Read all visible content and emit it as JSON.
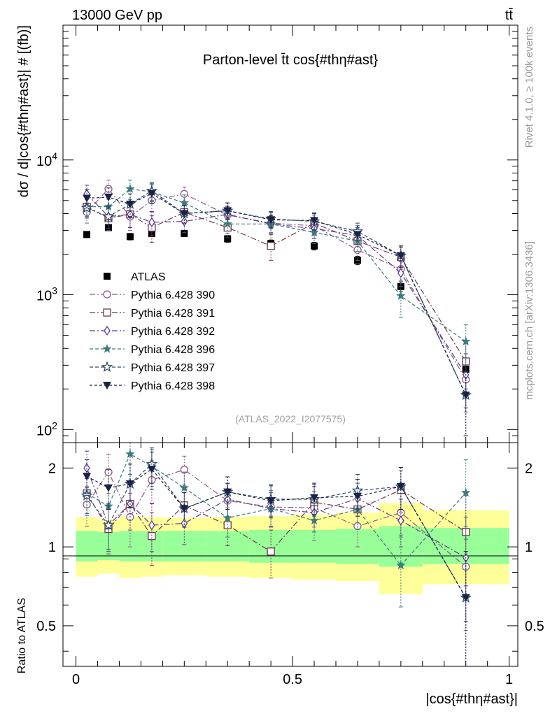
{
  "header": {
    "energy_label": "13000 GeV pp",
    "process_label": "tt̄"
  },
  "side_labels": {
    "rivet": "Rivet 4.1.0, ≥ 100k events",
    "mcplots": "mcplots.cern.ch [arXiv:1306.3436]"
  },
  "colors": {
    "atlas": "#000000",
    "p390": "#8a5a88",
    "p391": "#6e3a4a",
    "p392": "#5a3a8c",
    "p396": "#3e7a7e",
    "p397": "#2e4a68",
    "p398": "#1a2248",
    "band_outer": "#ffff99",
    "band_inner": "#99ff99"
  },
  "chart_data": [
    {
      "type": "scatter",
      "scale": "log",
      "title": "Parton-level t̄t cos{#thη#ast}",
      "ylabel": "dσ / d|cos{#thη#ast}| # [(fb)]",
      "xlabel": "",
      "xlim": [
        -0.03,
        1.02
      ],
      "ylim": [
        80,
        100000
      ],
      "yticks": [
        "10^2",
        "10^3",
        "10^4"
      ],
      "analysis": "(ATLAS_2022_I2077575)",
      "x": [
        0.025,
        0.075,
        0.125,
        0.175,
        0.25,
        0.35,
        0.45,
        0.55,
        0.65,
        0.75,
        0.9
      ],
      "series": [
        {
          "name": "ATLAS",
          "key": "atlas",
          "marker": "square-filled",
          "dash": "none",
          "values": [
            2800,
            3150,
            2700,
            2850,
            2850,
            2600,
            2400,
            2300,
            1800,
            1150,
            280
          ],
          "err": [
            150,
            150,
            150,
            150,
            150,
            150,
            150,
            150,
            130,
            100,
            40
          ]
        },
        {
          "name": "Pythia 6.428 390",
          "key": "p390",
          "marker": "circle-open",
          "dash": "8,3,2,3",
          "values": [
            4100,
            6100,
            3800,
            5000,
            5600,
            3900,
            3400,
            3250,
            2150,
            1550,
            235
          ],
          "err": [
            700,
            1000,
            800,
            900,
            700,
            600,
            500,
            500,
            350,
            300,
            100
          ]
        },
        {
          "name": "Pythia 6.428 391",
          "key": "p391",
          "marker": "square-open",
          "dash": "8,3,2,3",
          "values": [
            4500,
            3700,
            3950,
            3150,
            4100,
            3150,
            2300,
            3400,
            2500,
            1900,
            320
          ],
          "err": [
            700,
            700,
            800,
            700,
            600,
            500,
            500,
            500,
            400,
            350,
            120
          ]
        },
        {
          "name": "Pythia 6.428 392",
          "key": "p392",
          "marker": "diamond-open",
          "dash": "8,3,2,3",
          "values": [
            5600,
            3800,
            3950,
            3450,
            3500,
            3950,
            3350,
            3100,
            2750,
            1450,
            255
          ],
          "err": [
            900,
            800,
            800,
            700,
            600,
            600,
            500,
            500,
            400,
            300,
            110
          ]
        },
        {
          "name": "Pythia 6.428 396",
          "key": "p396",
          "marker": "star-filled",
          "dash": "5,3",
          "values": [
            4500,
            4500,
            6100,
            5800,
            4800,
            3350,
            3350,
            2900,
            2500,
            980,
            450
          ],
          "err": [
            700,
            800,
            1000,
            900,
            700,
            500,
            500,
            500,
            400,
            300,
            150
          ]
        },
        {
          "name": "Pythia 6.428 397",
          "key": "p397",
          "marker": "star-open",
          "dash": "5,3",
          "values": [
            4400,
            3800,
            4700,
            5900,
            4000,
            4200,
            3650,
            3500,
            2950,
            1950,
            180
          ],
          "err": [
            700,
            700,
            900,
            900,
            600,
            600,
            500,
            500,
            450,
            350,
            90
          ]
        },
        {
          "name": "Pythia 6.428 398",
          "key": "p398",
          "marker": "triangle-down-filled",
          "dash": "4,3",
          "values": [
            5200,
            5300,
            4700,
            5650,
            4000,
            4200,
            3600,
            3550,
            2800,
            1950,
            180
          ],
          "err": [
            800,
            900,
            900,
            900,
            600,
            600,
            500,
            500,
            450,
            350,
            90
          ]
        }
      ]
    },
    {
      "type": "scatter",
      "scale": "log",
      "title": "",
      "ylabel": "Ratio to ATLAS",
      "xlabel": "|cos{#thη#ast}|",
      "xlim": [
        -0.03,
        1.02
      ],
      "ylim": [
        0.35,
        2.5
      ],
      "yticks": [
        "0.5",
        "1",
        "2"
      ],
      "xticks": [
        "0",
        "0.5",
        "1"
      ],
      "bins": [
        [
          0.0,
          0.05
        ],
        [
          0.05,
          0.1
        ],
        [
          0.1,
          0.15
        ],
        [
          0.15,
          0.2
        ],
        [
          0.2,
          0.3
        ],
        [
          0.3,
          0.4
        ],
        [
          0.4,
          0.5
        ],
        [
          0.5,
          0.6
        ],
        [
          0.6,
          0.7
        ],
        [
          0.7,
          0.8
        ],
        [
          0.8,
          1.0
        ]
      ],
      "band_outer": [
        [
          0.77,
          1.3
        ],
        [
          0.79,
          1.27
        ],
        [
          0.76,
          1.31
        ],
        [
          0.77,
          1.3
        ],
        [
          0.78,
          1.29
        ],
        [
          0.77,
          1.3
        ],
        [
          0.76,
          1.31
        ],
        [
          0.75,
          1.33
        ],
        [
          0.74,
          1.35
        ],
        [
          0.66,
          1.47
        ],
        [
          0.72,
          1.38
        ]
      ],
      "band_inner": [
        [
          0.88,
          1.15
        ],
        [
          0.89,
          1.14
        ],
        [
          0.88,
          1.15
        ],
        [
          0.88,
          1.15
        ],
        [
          0.88,
          1.15
        ],
        [
          0.88,
          1.15
        ],
        [
          0.87,
          1.16
        ],
        [
          0.87,
          1.16
        ],
        [
          0.86,
          1.17
        ],
        [
          0.84,
          1.2
        ],
        [
          0.86,
          1.18
        ]
      ],
      "x": [
        0.025,
        0.075,
        0.125,
        0.175,
        0.25,
        0.35,
        0.45,
        0.55,
        0.65,
        0.75,
        0.9
      ],
      "series": [
        {
          "name": "Pythia 6.428 390",
          "key": "p390",
          "marker": "circle-open",
          "dash": "8,3,2,3",
          "values": [
            1.45,
            1.93,
            1.3,
            1.8,
            1.97,
            1.5,
            1.42,
            1.41,
            1.2,
            1.35,
            0.84
          ],
          "err": [
            0.25,
            0.33,
            0.3,
            0.33,
            0.25,
            0.24,
            0.22,
            0.22,
            0.2,
            0.26,
            0.36
          ]
        },
        {
          "name": "Pythia 6.428 391",
          "key": "p391",
          "marker": "square-open",
          "dash": "8,3,2,3",
          "values": [
            1.6,
            1.17,
            1.46,
            1.1,
            1.44,
            1.21,
            0.96,
            1.48,
            1.39,
            1.65,
            1.14
          ],
          "err": [
            0.26,
            0.23,
            0.3,
            0.25,
            0.22,
            0.2,
            0.2,
            0.22,
            0.22,
            0.3,
            0.43
          ]
        },
        {
          "name": "Pythia 6.428 392",
          "key": "p392",
          "marker": "diamond-open",
          "dash": "8,3,2,3",
          "values": [
            2.0,
            1.21,
            1.46,
            1.21,
            1.23,
            1.52,
            1.4,
            1.35,
            1.53,
            1.26,
            0.91
          ],
          "err": [
            0.32,
            0.25,
            0.3,
            0.25,
            0.21,
            0.23,
            0.21,
            0.21,
            0.22,
            0.26,
            0.39
          ]
        },
        {
          "name": "Pythia 6.428 396",
          "key": "p396",
          "marker": "star-filled",
          "dash": "5,3",
          "values": [
            1.6,
            1.43,
            2.26,
            2.03,
            1.68,
            1.29,
            1.4,
            1.26,
            1.39,
            0.85,
            1.61
          ],
          "err": [
            0.26,
            0.26,
            0.37,
            0.33,
            0.25,
            0.2,
            0.21,
            0.2,
            0.22,
            0.26,
            0.54
          ]
        },
        {
          "name": "Pythia 6.428 397",
          "key": "p397",
          "marker": "star-open",
          "dash": "5,3",
          "values": [
            1.57,
            1.21,
            1.74,
            2.07,
            1.4,
            1.62,
            1.52,
            1.52,
            1.64,
            1.7,
            0.64
          ],
          "err": [
            0.25,
            0.23,
            0.33,
            0.32,
            0.21,
            0.23,
            0.21,
            0.21,
            0.25,
            0.31,
            0.32
          ]
        },
        {
          "name": "Pythia 6.428 398",
          "key": "p398",
          "marker": "triangle-down-filled",
          "dash": "4,3",
          "values": [
            1.86,
            1.68,
            1.74,
            1.98,
            1.4,
            1.62,
            1.5,
            1.54,
            1.56,
            1.7,
            0.64
          ],
          "err": [
            0.29,
            0.29,
            0.33,
            0.32,
            0.21,
            0.23,
            0.21,
            0.21,
            0.25,
            0.31,
            0.32
          ]
        }
      ]
    }
  ]
}
